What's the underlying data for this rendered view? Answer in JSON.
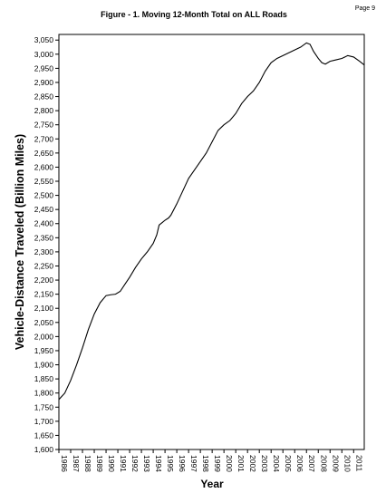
{
  "page": {
    "number": "Page 9"
  },
  "chart_data": {
    "type": "line",
    "title": "Figure - 1.  Moving 12-Month Total on ALL Roads",
    "xlabel": "Year",
    "ylabel": "Vehicle-Distance Traveled (Billion Miles)",
    "xlim": [
      1986,
      2011.9
    ],
    "ylim": [
      1600,
      3070
    ],
    "x_tick_labels": [
      "1986",
      "1987",
      "1988",
      "1989",
      "1990",
      "1991",
      "1992",
      "1993",
      "1994",
      "1995",
      "1996",
      "1997",
      "1998",
      "1999",
      "2000",
      "2001",
      "2002",
      "2003",
      "2004",
      "2005",
      "2006",
      "2007",
      "2008",
      "2009",
      "2010",
      "2011"
    ],
    "y_ticks": [
      1600,
      1650,
      1700,
      1750,
      1800,
      1850,
      1900,
      1950,
      2000,
      2050,
      2100,
      2150,
      2200,
      2250,
      2300,
      2350,
      2400,
      2450,
      2500,
      2550,
      2600,
      2650,
      2700,
      2750,
      2800,
      2850,
      2900,
      2950,
      3000,
      3050
    ],
    "y_tick_labels": [
      "1,600",
      "1,650",
      "1,700",
      "1,750",
      "1,800",
      "1,850",
      "1,900",
      "1,950",
      "2,000",
      "2,050",
      "2,100",
      "2,150",
      "2,200",
      "2,250",
      "2,300",
      "2,350",
      "2,400",
      "2,450",
      "2,500",
      "2,550",
      "2,600",
      "2,650",
      "2,700",
      "2,750",
      "2,800",
      "2,850",
      "2,900",
      "2,950",
      "3,000",
      "3,050"
    ],
    "grid": false,
    "series": [
      {
        "color": "#000000",
        "x": [
          1986.0,
          1986.5,
          1987.0,
          1987.5,
          1988.0,
          1988.5,
          1989.0,
          1989.5,
          1990.0,
          1990.4,
          1990.8,
          1991.2,
          1991.6,
          1992.0,
          1992.5,
          1993.0,
          1993.5,
          1994.0,
          1994.3,
          1994.5,
          1994.8,
          1995.0,
          1995.3,
          1995.5,
          1996.0,
          1996.5,
          1997.0,
          1997.5,
          1998.0,
          1998.5,
          1999.0,
          1999.5,
          2000.0,
          2000.5,
          2001.0,
          2001.5,
          2002.0,
          2002.5,
          2003.0,
          2003.5,
          2004.0,
          2004.5,
          2005.0,
          2005.5,
          2006.0,
          2006.5,
          2007.0,
          2007.3,
          2007.6,
          2008.0,
          2008.3,
          2008.6,
          2009.0,
          2009.5,
          2010.0,
          2010.5,
          2011.0,
          2011.5,
          2011.9
        ],
        "y": [
          1777,
          1800,
          1845,
          1900,
          1960,
          2025,
          2080,
          2120,
          2145,
          2148,
          2150,
          2160,
          2185,
          2210,
          2245,
          2275,
          2300,
          2330,
          2360,
          2395,
          2405,
          2412,
          2420,
          2430,
          2470,
          2515,
          2560,
          2590,
          2620,
          2650,
          2690,
          2730,
          2750,
          2765,
          2790,
          2825,
          2850,
          2870,
          2900,
          2940,
          2970,
          2985,
          2995,
          3005,
          3015,
          3025,
          3040,
          3035,
          3010,
          2985,
          2970,
          2965,
          2975,
          2980,
          2985,
          2995,
          2990,
          2975,
          2962
        ]
      }
    ]
  }
}
